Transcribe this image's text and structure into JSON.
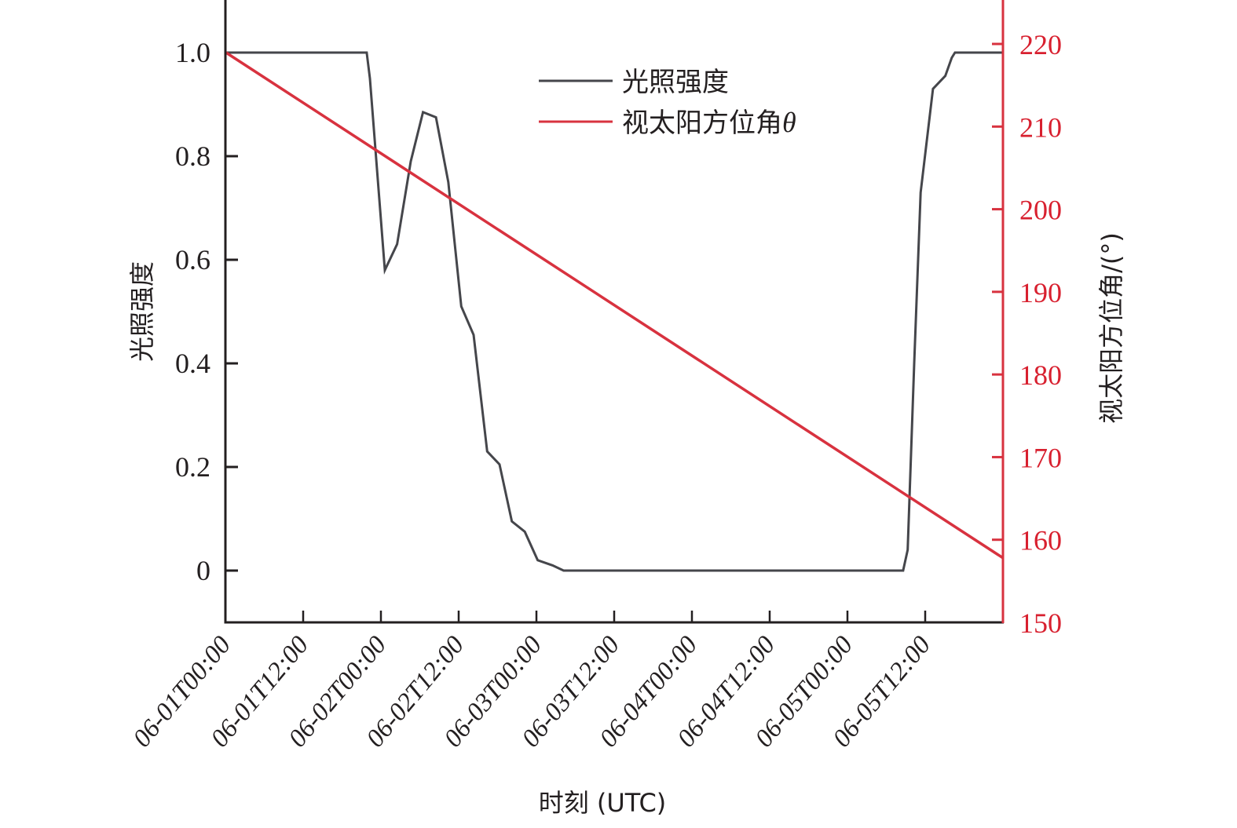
{
  "chart_data": {
    "type": "line",
    "title": "",
    "xlabel": "时刻 (UTC)",
    "ylabel": "光照强度",
    "ylabel_right": "视太阳方位角/(°)",
    "x_tick_labels": [
      "06-01T00:00",
      "06-01T12:00",
      "06-02T00:00",
      "06-02T12:00",
      "06-03T00:00",
      "06-03T12:00",
      "06-04T00:00",
      "06-04T12:00",
      "06-05T00:00",
      "06-05T12:00"
    ],
    "x_unit": "hours since 06-01T00:00",
    "xlim": [
      0,
      120
    ],
    "y_ticks": [
      "0",
      "0.2",
      "0.4",
      "0.6",
      "0.8",
      "1.0"
    ],
    "y_tick_values": [
      0,
      0.2,
      0.4,
      0.6,
      0.8,
      1.0
    ],
    "ylim": [
      -0.2,
      1.2
    ],
    "y_right_ticks": [
      "150",
      "160",
      "170",
      "180",
      "190",
      "200",
      "210",
      "220"
    ],
    "y_right_tick_values": [
      150,
      160,
      170,
      180,
      190,
      200,
      210,
      220
    ],
    "ylim_right": [
      150,
      225
    ],
    "grid": false,
    "legend_position": "upper center",
    "series": [
      {
        "name": "光照强度",
        "axis": "left",
        "color": "#45464b",
        "x": [
          0,
          21.8,
          22.3,
          24.6,
          26.5,
          28.6,
          30.5,
          32.5,
          34.4,
          36.4,
          38.3,
          40.4,
          42.3,
          44.2,
          46.2,
          48.2,
          50.5,
          52.2,
          104.6,
          105.3,
          106.3,
          107.3,
          109.2,
          111.1,
          112.1,
          112.6,
          120
        ],
        "values": [
          1.0,
          1.0,
          0.95,
          0.58,
          0.63,
          0.79,
          0.885,
          0.875,
          0.75,
          0.51,
          0.455,
          0.23,
          0.205,
          0.095,
          0.075,
          0.02,
          0.01,
          0.0,
          0.0,
          0.04,
          0.4,
          0.73,
          0.93,
          0.955,
          0.99,
          1.0,
          1.0
        ]
      },
      {
        "name": "视太阳方位角θ",
        "axis": "right",
        "color": "#d8323f",
        "x": [
          0,
          120
        ],
        "values": [
          219.0,
          157.8
        ]
      }
    ]
  },
  "legend": {
    "items": [
      {
        "label": "光照强度",
        "color": "#45464b",
        "suffix": ""
      },
      {
        "label": "视太阳方位角",
        "color": "#d8323f",
        "suffix": "θ"
      }
    ]
  },
  "colors": {
    "left_axis": "#231f20",
    "right_axis": "#d8323f",
    "right_tick_text": "#d8202f"
  }
}
